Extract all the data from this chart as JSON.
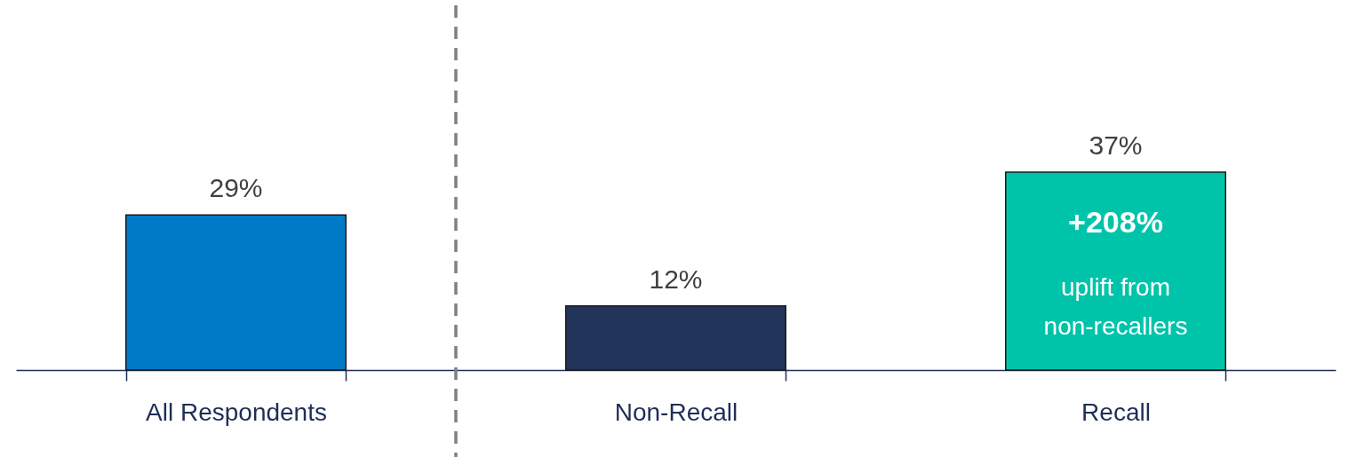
{
  "chart_data": {
    "type": "bar",
    "categories": [
      "All Respondents",
      "Non-Recall",
      "Recall"
    ],
    "values": [
      29,
      12,
      37
    ],
    "colors": [
      "#007ac6",
      "#22345a",
      "#00c4aa"
    ],
    "value_labels": [
      "29%",
      "12%",
      "37%"
    ],
    "annotations": [
      "+208%",
      "uplift from\nnon-recallers"
    ]
  }
}
